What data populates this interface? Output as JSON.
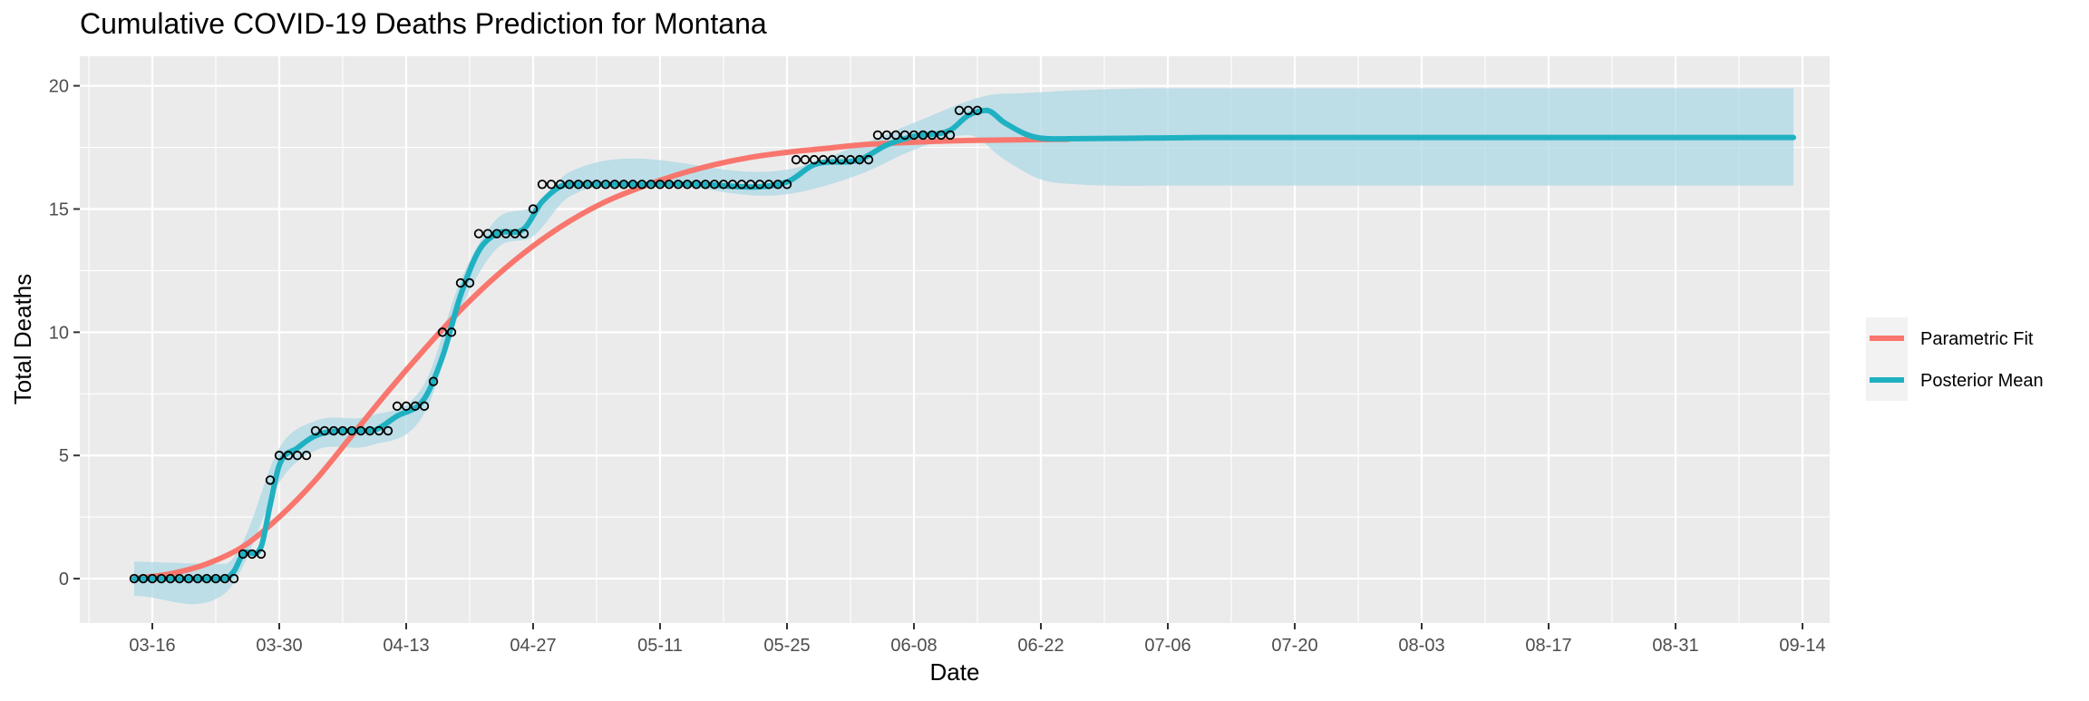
{
  "chart_data": {
    "type": "line",
    "title": "Cumulative COVID-19 Deaths Prediction for Montana",
    "xlabel": "Date",
    "ylabel": "Total Deaths",
    "x_ticks": [
      "03-16",
      "03-30",
      "04-13",
      "04-27",
      "05-11",
      "05-25",
      "06-08",
      "06-22",
      "07-06",
      "07-20",
      "08-03",
      "08-17",
      "08-31",
      "09-14"
    ],
    "x_range": [
      "2020-03-08",
      "2020-09-17"
    ],
    "y_ticks": [
      0,
      5,
      10,
      15,
      20
    ],
    "ylim": [
      -1.8,
      21.2
    ],
    "grid": true,
    "legend_position": "right",
    "observed": [
      [
        "2020-03-14",
        0
      ],
      [
        "2020-03-15",
        0
      ],
      [
        "2020-03-16",
        0
      ],
      [
        "2020-03-17",
        0
      ],
      [
        "2020-03-18",
        0
      ],
      [
        "2020-03-19",
        0
      ],
      [
        "2020-03-20",
        0
      ],
      [
        "2020-03-21",
        0
      ],
      [
        "2020-03-22",
        0
      ],
      [
        "2020-03-23",
        0
      ],
      [
        "2020-03-24",
        0
      ],
      [
        "2020-03-25",
        0
      ],
      [
        "2020-03-26",
        1
      ],
      [
        "2020-03-27",
        1
      ],
      [
        "2020-03-28",
        1
      ],
      [
        "2020-03-29",
        4
      ],
      [
        "2020-03-30",
        5
      ],
      [
        "2020-03-31",
        5
      ],
      [
        "2020-04-01",
        5
      ],
      [
        "2020-04-02",
        5
      ],
      [
        "2020-04-03",
        6
      ],
      [
        "2020-04-04",
        6
      ],
      [
        "2020-04-05",
        6
      ],
      [
        "2020-04-06",
        6
      ],
      [
        "2020-04-07",
        6
      ],
      [
        "2020-04-08",
        6
      ],
      [
        "2020-04-09",
        6
      ],
      [
        "2020-04-10",
        6
      ],
      [
        "2020-04-11",
        6
      ],
      [
        "2020-04-12",
        7
      ],
      [
        "2020-04-13",
        7
      ],
      [
        "2020-04-14",
        7
      ],
      [
        "2020-04-15",
        7
      ],
      [
        "2020-04-16",
        8
      ],
      [
        "2020-04-17",
        10
      ],
      [
        "2020-04-18",
        10
      ],
      [
        "2020-04-19",
        12
      ],
      [
        "2020-04-20",
        12
      ],
      [
        "2020-04-21",
        14
      ],
      [
        "2020-04-22",
        14
      ],
      [
        "2020-04-23",
        14
      ],
      [
        "2020-04-24",
        14
      ],
      [
        "2020-04-25",
        14
      ],
      [
        "2020-04-26",
        14
      ],
      [
        "2020-04-27",
        15
      ],
      [
        "2020-04-28",
        16
      ],
      [
        "2020-04-29",
        16
      ],
      [
        "2020-04-30",
        16
      ],
      [
        "2020-05-01",
        16
      ],
      [
        "2020-05-02",
        16
      ],
      [
        "2020-05-03",
        16
      ],
      [
        "2020-05-04",
        16
      ],
      [
        "2020-05-05",
        16
      ],
      [
        "2020-05-06",
        16
      ],
      [
        "2020-05-07",
        16
      ],
      [
        "2020-05-08",
        16
      ],
      [
        "2020-05-09",
        16
      ],
      [
        "2020-05-10",
        16
      ],
      [
        "2020-05-11",
        16
      ],
      [
        "2020-05-12",
        16
      ],
      [
        "2020-05-13",
        16
      ],
      [
        "2020-05-14",
        16
      ],
      [
        "2020-05-15",
        16
      ],
      [
        "2020-05-16",
        16
      ],
      [
        "2020-05-17",
        16
      ],
      [
        "2020-05-18",
        16
      ],
      [
        "2020-05-19",
        16
      ],
      [
        "2020-05-20",
        16
      ],
      [
        "2020-05-21",
        16
      ],
      [
        "2020-05-22",
        16
      ],
      [
        "2020-05-23",
        16
      ],
      [
        "2020-05-24",
        16
      ],
      [
        "2020-05-25",
        16
      ],
      [
        "2020-05-26",
        17
      ],
      [
        "2020-05-27",
        17
      ],
      [
        "2020-05-28",
        17
      ],
      [
        "2020-05-29",
        17
      ],
      [
        "2020-05-30",
        17
      ],
      [
        "2020-05-31",
        17
      ],
      [
        "2020-06-01",
        17
      ],
      [
        "2020-06-02",
        17
      ],
      [
        "2020-06-03",
        17
      ],
      [
        "2020-06-04",
        18
      ],
      [
        "2020-06-05",
        18
      ],
      [
        "2020-06-06",
        18
      ],
      [
        "2020-06-07",
        18
      ],
      [
        "2020-06-08",
        18
      ],
      [
        "2020-06-09",
        18
      ],
      [
        "2020-06-10",
        18
      ],
      [
        "2020-06-11",
        18
      ],
      [
        "2020-06-12",
        18
      ],
      [
        "2020-06-13",
        19
      ],
      [
        "2020-06-14",
        19
      ],
      [
        "2020-06-15",
        19
      ]
    ],
    "series": [
      {
        "name": "Parametric Fit",
        "color": "#F8766D",
        "points": [
          [
            "2020-03-14",
            0.0
          ],
          [
            "2020-03-18",
            0.2
          ],
          [
            "2020-03-22",
            0.6
          ],
          [
            "2020-03-26",
            1.3
          ],
          [
            "2020-03-30",
            2.5
          ],
          [
            "2020-04-03",
            4.0
          ],
          [
            "2020-04-07",
            5.8
          ],
          [
            "2020-04-11",
            7.6
          ],
          [
            "2020-04-15",
            9.3
          ],
          [
            "2020-04-19",
            10.9
          ],
          [
            "2020-04-23",
            12.3
          ],
          [
            "2020-04-27",
            13.5
          ],
          [
            "2020-05-01",
            14.5
          ],
          [
            "2020-05-05",
            15.3
          ],
          [
            "2020-05-09",
            15.9
          ],
          [
            "2020-05-13",
            16.4
          ],
          [
            "2020-05-17",
            16.8
          ],
          [
            "2020-05-21",
            17.1
          ],
          [
            "2020-05-25",
            17.3
          ],
          [
            "2020-05-29",
            17.45
          ],
          [
            "2020-06-02",
            17.6
          ],
          [
            "2020-06-06",
            17.68
          ],
          [
            "2020-06-10",
            17.74
          ],
          [
            "2020-06-14",
            17.78
          ],
          [
            "2020-06-18",
            17.8
          ],
          [
            "2020-06-22",
            17.82
          ],
          [
            "2020-06-25",
            17.83
          ]
        ]
      },
      {
        "name": "Posterior Mean",
        "color": "#1FB1C1",
        "points": [
          [
            "2020-03-14",
            0.0
          ],
          [
            "2020-03-20",
            0.0
          ],
          [
            "2020-03-24",
            0.0
          ],
          [
            "2020-03-25",
            0.3
          ],
          [
            "2020-03-26",
            1.0
          ],
          [
            "2020-03-28",
            1.3
          ],
          [
            "2020-03-29",
            3.0
          ],
          [
            "2020-03-30",
            4.6
          ],
          [
            "2020-04-01",
            5.3
          ],
          [
            "2020-04-03",
            5.8
          ],
          [
            "2020-04-06",
            6.0
          ],
          [
            "2020-04-09",
            6.0
          ],
          [
            "2020-04-12",
            6.6
          ],
          [
            "2020-04-15",
            7.3
          ],
          [
            "2020-04-17",
            9.0
          ],
          [
            "2020-04-19",
            11.5
          ],
          [
            "2020-04-21",
            13.3
          ],
          [
            "2020-04-23",
            14.0
          ],
          [
            "2020-04-26",
            14.2
          ],
          [
            "2020-04-28",
            15.3
          ],
          [
            "2020-05-01",
            16.0
          ],
          [
            "2020-05-05",
            16.0
          ],
          [
            "2020-05-15",
            16.0
          ],
          [
            "2020-05-25",
            16.1
          ],
          [
            "2020-05-28",
            16.8
          ],
          [
            "2020-06-02",
            17.0
          ],
          [
            "2020-06-05",
            17.6
          ],
          [
            "2020-06-08",
            17.95
          ],
          [
            "2020-06-12",
            18.2
          ],
          [
            "2020-06-14",
            18.8
          ],
          [
            "2020-06-16",
            19.0
          ],
          [
            "2020-06-18",
            18.5
          ],
          [
            "2020-06-21",
            17.95
          ],
          [
            "2020-06-25",
            17.85
          ],
          [
            "2020-07-10",
            17.9
          ],
          [
            "2020-09-13",
            17.9
          ]
        ],
        "band_upper": [
          [
            "2020-03-14",
            0.7
          ],
          [
            "2020-03-24",
            0.6
          ],
          [
            "2020-03-26",
            1.5
          ],
          [
            "2020-03-30",
            5.3
          ],
          [
            "2020-04-03",
            6.4
          ],
          [
            "2020-04-09",
            6.6
          ],
          [
            "2020-04-15",
            7.9
          ],
          [
            "2020-04-19",
            12.1
          ],
          [
            "2020-04-23",
            14.6
          ],
          [
            "2020-04-27",
            15.1
          ],
          [
            "2020-05-01",
            16.5
          ],
          [
            "2020-05-25",
            16.6
          ],
          [
            "2020-06-02",
            17.6
          ],
          [
            "2020-06-08",
            18.5
          ],
          [
            "2020-06-16",
            19.6
          ],
          [
            "2020-06-20",
            19.7
          ],
          [
            "2020-06-25",
            19.8
          ],
          [
            "2020-07-06",
            19.9
          ],
          [
            "2020-09-13",
            19.9
          ]
        ],
        "band_lower": [
          [
            "2020-03-14",
            -0.7
          ],
          [
            "2020-03-24",
            -0.6
          ],
          [
            "2020-03-26",
            0.5
          ],
          [
            "2020-03-30",
            3.9
          ],
          [
            "2020-04-03",
            5.2
          ],
          [
            "2020-04-09",
            5.4
          ],
          [
            "2020-04-15",
            6.7
          ],
          [
            "2020-04-19",
            10.9
          ],
          [
            "2020-04-23",
            13.4
          ],
          [
            "2020-04-27",
            13.9
          ],
          [
            "2020-05-01",
            15.5
          ],
          [
            "2020-05-25",
            15.6
          ],
          [
            "2020-06-02",
            16.4
          ],
          [
            "2020-06-08",
            17.4
          ],
          [
            "2020-06-14",
            18.0
          ],
          [
            "2020-06-18",
            17.0
          ],
          [
            "2020-06-22",
            16.2
          ],
          [
            "2020-06-26",
            16.0
          ],
          [
            "2020-07-06",
            15.95
          ],
          [
            "2020-09-13",
            15.95
          ]
        ]
      }
    ]
  }
}
